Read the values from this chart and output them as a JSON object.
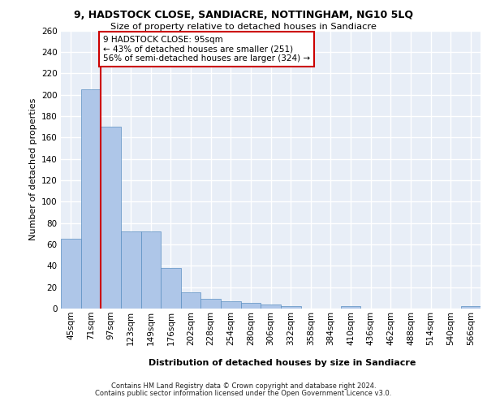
{
  "title1": "9, HADSTOCK CLOSE, SANDIACRE, NOTTINGHAM, NG10 5LQ",
  "title2": "Size of property relative to detached houses in Sandiacre",
  "xlabel": "Distribution of detached houses by size in Sandiacre",
  "ylabel": "Number of detached properties",
  "bins": [
    "45sqm",
    "71sqm",
    "97sqm",
    "123sqm",
    "149sqm",
    "176sqm",
    "202sqm",
    "228sqm",
    "254sqm",
    "280sqm",
    "306sqm",
    "332sqm",
    "358sqm",
    "384sqm",
    "410sqm",
    "436sqm",
    "462sqm",
    "488sqm",
    "514sqm",
    "540sqm",
    "566sqm"
  ],
  "values": [
    65,
    205,
    170,
    72,
    72,
    38,
    15,
    9,
    7,
    5,
    4,
    2,
    0,
    0,
    2,
    0,
    0,
    0,
    0,
    0,
    2
  ],
  "bar_color": "#aec6e8",
  "bar_edge_color": "#5a8fc2",
  "red_line_color": "#cc0000",
  "red_line_x": 1.5,
  "annotation_text": "9 HADSTOCK CLOSE: 95sqm\n← 43% of detached houses are smaller (251)\n56% of semi-detached houses are larger (324) →",
  "annotation_box_facecolor": "#ffffff",
  "annotation_box_edgecolor": "#cc0000",
  "ylim": [
    0,
    260
  ],
  "yticks": [
    0,
    20,
    40,
    60,
    80,
    100,
    120,
    140,
    160,
    180,
    200,
    220,
    240,
    260
  ],
  "bg_color": "#e8eef7",
  "grid_color": "#ffffff",
  "footer1": "Contains HM Land Registry data © Crown copyright and database right 2024.",
  "footer2": "Contains public sector information licensed under the Open Government Licence v3.0."
}
